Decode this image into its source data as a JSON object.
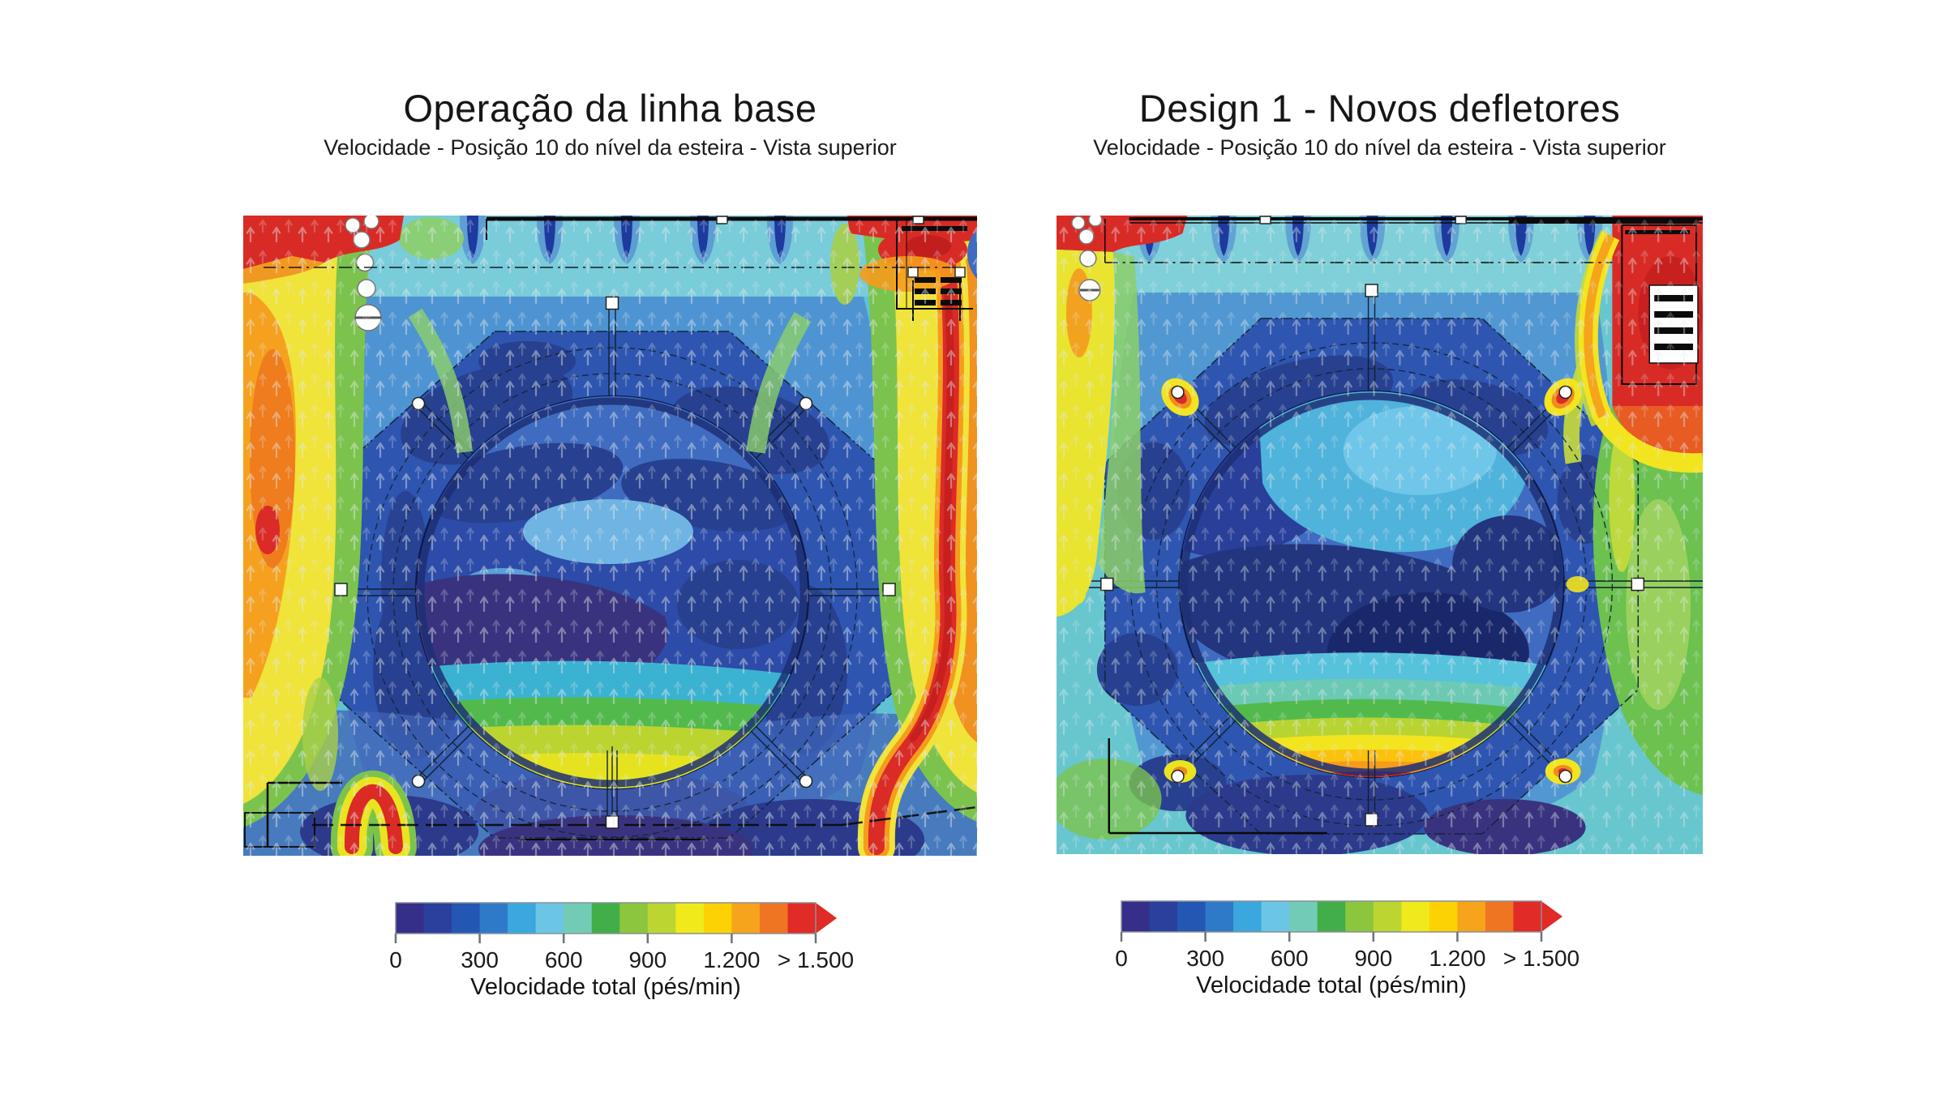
{
  "page": {
    "background": "#ffffff"
  },
  "panels": [
    {
      "title": "Operação da linha base",
      "subtitle": "Velocidade - Posição 10 do nível da esteira - Vista superior"
    },
    {
      "title": "Design 1 - Novos defletores",
      "subtitle": "Velocidade - Posição 10 do nível da esteira - Vista superior"
    }
  ],
  "colorbar_scale": {
    "label": "Velocidade total (pés/min)",
    "ticks": [
      "0",
      "300",
      "600",
      "900",
      "1.200",
      "> 1.500"
    ],
    "tick_values": [
      0,
      300,
      600,
      900,
      1200,
      1500
    ],
    "colors": [
      "#352f8a",
      "#2b3f9d",
      "#2457b3",
      "#2f7ac8",
      "#3aa7de",
      "#6ac6e4",
      "#72ccb5",
      "#42ae49",
      "#8cc63c",
      "#bcd531",
      "#f0e91c",
      "#fcd205",
      "#f6a41c",
      "#ef7522",
      "#e02b26"
    ],
    "arrow_color": "#e02b26"
  },
  "chart_data": [
    {
      "type": "heatmap",
      "subtype": "cfd-velocity-contour",
      "title": "Operação da linha base",
      "subtitle": "Velocidade - Posição 10 do nível da esteira - Vista superior",
      "variable": "Velocidade total",
      "units": "pés/min",
      "legend_position": "bottom",
      "scale": {
        "min": 0,
        "max": 1500,
        "open_ended_max": true,
        "bin_size": 100,
        "tick_labels": [
          "0",
          "300",
          "600",
          "900",
          "1.200",
          "> 1.500"
        ]
      },
      "features": [
        {
          "region": "borda esquerda",
          "velocity_pes_min": "900–1.500",
          "descricao": "faixa vertical amarela/laranja de alta velocidade com núcleo laranja e ponto vermelho"
        },
        {
          "region": "canto superior esquerdo",
          "velocity_pes_min": "> 1.500",
          "descricao": "jato vermelho junto ao grupo de ventiladores (círculos brancos)"
        },
        {
          "region": "borda direita",
          "velocity_pes_min": "> 1.500",
          "descricao": "faixa vermelha intensa descendo pela lateral direita"
        },
        {
          "region": "canto superior direito",
          "velocity_pes_min": "> 1.500",
          "descricao": "zona vermelha sobre o equipamento hachurado"
        },
        {
          "region": "centro do círculo da máquina",
          "velocity_pes_min": "0–300",
          "descricao": "núcleo azul-escuro de baixa velocidade"
        },
        {
          "region": "base do círculo",
          "velocity_pes_min": "600–900",
          "descricao": "crescente ciano-verde-amarelo"
        },
        {
          "region": "cantos inferiores do anel",
          "velocity_pes_min": "> 1.500",
          "descricao": "vórtices vermelhos em forma de gancho"
        }
      ]
    },
    {
      "type": "heatmap",
      "subtype": "cfd-velocity-contour",
      "title": "Design 1 - Novos defletores",
      "subtitle": "Velocidade - Posição 10 do nível da esteira - Vista superior",
      "variable": "Velocidade total",
      "units": "pés/min",
      "legend_position": "bottom",
      "scale": {
        "min": 0,
        "max": 1500,
        "open_ended_max": true,
        "bin_size": 100,
        "tick_labels": [
          "0",
          "300",
          "600",
          "900",
          "1.200",
          "> 1.500"
        ]
      },
      "features": [
        {
          "region": "campo geral",
          "velocity_pes_min": "300–600",
          "descricao": "fundo verde-azulado mais uniforme que a linha base"
        },
        {
          "region": "defletores ao redor do anel",
          "velocity_pes_min": "> 1.500",
          "descricao": "pontos quentes vermelhos localizados nos cantos dos defletores"
        },
        {
          "region": "base do círculo",
          "velocity_pes_min": "900–1.500",
          "descricao": "crescente amarelo-laranja-vermelho no rebordo inferior"
        },
        {
          "region": "canto superior direito",
          "velocity_pes_min": "> 1.500",
          "descricao": "zona vermelha sobre o equipamento hachurado"
        },
        {
          "region": "lado direito",
          "velocity_pes_min": "600–900",
          "descricao": "faixa verde vertical"
        },
        {
          "region": "centro do círculo",
          "velocity_pes_min": "0–300",
          "descricao": "núcleo azul-escuro/índigo"
        },
        {
          "region": "topo do círculo",
          "velocity_pes_min": "300–600",
          "descricao": "mancha ciano-clara"
        }
      ]
    }
  ]
}
